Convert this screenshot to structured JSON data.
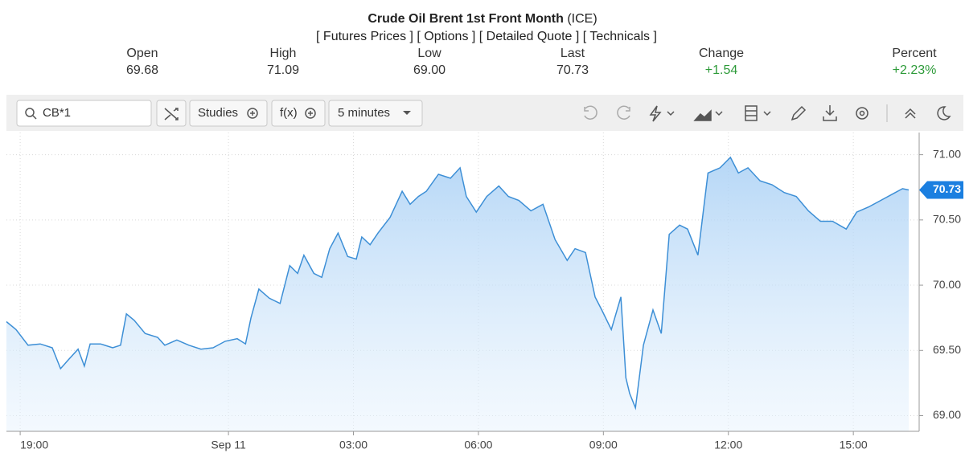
{
  "header": {
    "title": "Crude Oil Brent 1st Front Month",
    "exchange": "(ICE)",
    "links": [
      "[ Futures Prices ]",
      "[ Options ]",
      "[ Detailed Quote ]",
      "[ Technicals ]"
    ]
  },
  "quote": {
    "open": {
      "label": "Open",
      "value": "69.68"
    },
    "high": {
      "label": "High",
      "value": "71.09"
    },
    "low": {
      "label": "Low",
      "value": "69.00"
    },
    "last": {
      "label": "Last",
      "value": "70.73"
    },
    "change": {
      "label": "Change",
      "value": "+1.54"
    },
    "percent": {
      "label": "Percent",
      "value": "+2.23%"
    }
  },
  "toolbar": {
    "symbol": "CB*1",
    "studies": "Studies",
    "function": "f(x)",
    "interval": "5 minutes"
  },
  "chart_data": {
    "type": "line",
    "color": "#3d8fd6",
    "grid": true,
    "x": [
      -0.33,
      -0.1,
      0.19,
      0.48,
      0.77,
      0.97,
      1.16,
      1.39,
      1.54,
      1.68,
      1.93,
      2.22,
      2.41,
      2.55,
      2.74,
      3.0,
      3.3,
      3.47,
      3.76,
      4.05,
      4.34,
      4.63,
      4.92,
      5.21,
      5.41,
      5.54,
      5.73,
      5.98,
      6.24,
      6.47,
      6.66,
      6.81,
      7.05,
      7.24,
      7.43,
      7.63,
      7.86,
      8.07,
      8.2,
      8.4,
      8.59,
      8.88,
      9.17,
      9.36,
      9.56,
      9.75,
      10.04,
      10.33,
      10.56,
      10.71,
      10.95,
      11.2,
      11.49,
      11.72,
      11.97,
      12.26,
      12.55,
      12.84,
      13.13,
      13.32,
      13.57,
      13.8,
      13.96,
      14.19,
      14.42,
      14.54,
      14.63,
      14.77,
      14.96,
      15.19,
      15.39,
      15.58,
      15.83,
      16.02,
      16.27,
      16.51,
      16.8,
      17.05,
      17.24,
      17.47,
      17.76,
      18.05,
      18.34,
      18.63,
      18.92,
      19.21,
      19.5,
      19.83,
      20.08,
      20.37,
      20.66,
      20.95,
      21.18,
      21.33
    ],
    "values": [
      69.72,
      69.66,
      69.54,
      69.55,
      69.52,
      69.36,
      69.43,
      69.51,
      69.38,
      69.55,
      69.55,
      69.52,
      69.54,
      69.78,
      69.73,
      69.63,
      69.6,
      69.54,
      69.58,
      69.54,
      69.51,
      69.52,
      69.57,
      69.59,
      69.55,
      69.75,
      69.97,
      69.9,
      69.86,
      70.15,
      70.09,
      70.23,
      70.09,
      70.06,
      70.28,
      70.4,
      70.22,
      70.2,
      70.37,
      70.31,
      70.4,
      70.52,
      70.72,
      70.62,
      70.68,
      70.72,
      70.85,
      70.82,
      70.9,
      70.68,
      70.56,
      70.68,
      70.76,
      70.68,
      70.65,
      70.57,
      70.62,
      70.35,
      70.19,
      70.28,
      70.25,
      69.91,
      69.81,
      69.66,
      69.91,
      69.29,
      69.17,
      69.06,
      69.54,
      69.81,
      69.63,
      70.39,
      70.46,
      70.43,
      70.23,
      70.86,
      70.9,
      70.98,
      70.86,
      70.9,
      70.8,
      70.77,
      70.71,
      70.68,
      70.57,
      70.49,
      70.49,
      70.43,
      70.56,
      70.6,
      70.65,
      70.7,
      70.74,
      70.73
    ],
    "xlim": [
      -0.33,
      21.58
    ],
    "xticks": [
      {
        "value": 0,
        "label": "19:00"
      },
      {
        "value": 5,
        "label": "Sep 11"
      },
      {
        "value": 8,
        "label": "03:00"
      },
      {
        "value": 11,
        "label": "06:00"
      },
      {
        "value": 14,
        "label": "09:00"
      },
      {
        "value": 17,
        "label": "12:00"
      },
      {
        "value": 20,
        "label": "15:00"
      }
    ],
    "ylim": [
      68.88,
      71.17
    ],
    "yticks": [
      {
        "value": 69,
        "label": "69.00"
      },
      {
        "value": 69.5,
        "label": "69.50"
      },
      {
        "value": 70,
        "label": "70.00"
      },
      {
        "value": 70.5,
        "label": "70.50"
      },
      {
        "value": 71,
        "label": "71.00"
      }
    ]
  }
}
